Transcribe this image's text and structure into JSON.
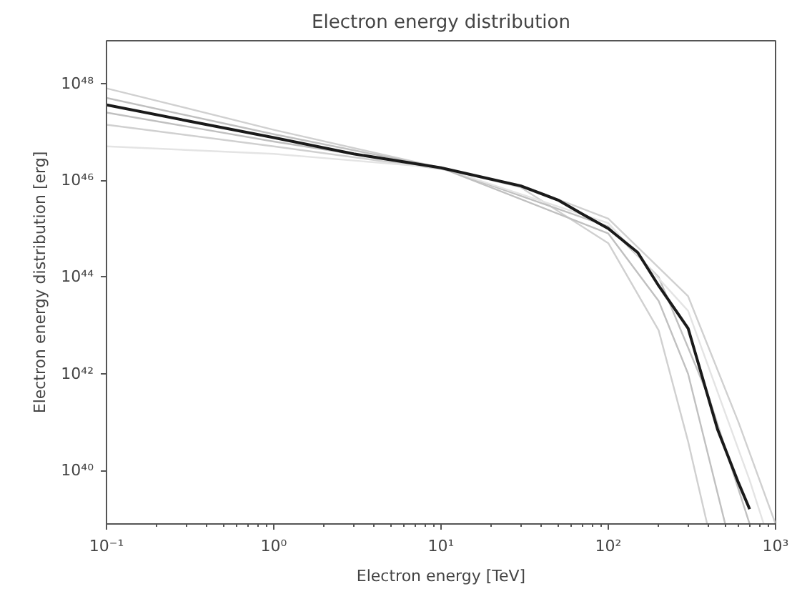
{
  "chart_data": {
    "type": "line",
    "title": "Electron energy distribution",
    "xlabel": "Electron energy [TeV]",
    "ylabel": "Electron energy distribution [erg]",
    "log": "xy",
    "grid": false,
    "marker": "none",
    "line_style": "solid",
    "xlim": [
      0.1,
      1000
    ],
    "ylim": [
      7.9e+38,
      7.6e+48
    ],
    "xticks": [
      {
        "value": 0.1,
        "label": "10⁻¹"
      },
      {
        "value": 1,
        "label": "10⁰"
      },
      {
        "value": 10,
        "label": "10¹"
      },
      {
        "value": 100,
        "label": "10²"
      },
      {
        "value": 1000,
        "label": "10³"
      }
    ],
    "yticks": [
      {
        "value": 1e+40,
        "label": "10⁴⁰"
      },
      {
        "value": 1e+42,
        "label": "10⁴²"
      },
      {
        "value": 1e+44,
        "label": "10⁴⁴"
      },
      {
        "value": 1e+46,
        "label": "10⁴⁶"
      },
      {
        "value": 1e+48,
        "label": "10⁴⁸"
      }
    ],
    "series": [
      {
        "color": "#d0d0d0",
        "x": [
          0.1,
          1,
          10,
          30,
          100,
          200,
          300,
          390
        ],
        "values": [
          7.9e+47,
          1.1e+47,
          1.8e+46,
          7.1e+45,
          5e+44,
          7.9e+42,
          4e+40,
          7.9e+38
        ]
      },
      {
        "color": "#d0d0d0",
        "x": [
          0.1,
          1,
          10,
          30,
          100,
          300,
          600,
          1000
        ],
        "values": [
          1.4e+47,
          5e+46,
          1.7e+46,
          7.9e+45,
          1.6e+45,
          4e+43,
          1e+41,
          7.9e+38
        ]
      },
      {
        "color": "#c0c0c0",
        "x": [
          0.1,
          1,
          10,
          100,
          200,
          400,
          700
        ],
        "values": [
          5e+47,
          8.9e+46,
          1.8e+46,
          1.1e+45,
          1e+44,
          3.2e+41,
          7.9e+38
        ]
      },
      {
        "color": "#e4e4e4",
        "x": [
          0.1,
          1,
          10,
          100,
          300,
          700,
          850
        ],
        "values": [
          5e+46,
          3.5e+46,
          1.8e+46,
          1.3e+45,
          2e+43,
          6.3e+39,
          7.9e+38
        ]
      },
      {
        "color": "#c0c0c0",
        "x": [
          0.1,
          1,
          10,
          100,
          200,
          300,
          500
        ],
        "values": [
          2.5e+47,
          6.3e+46,
          1.8e+46,
          7.9e+44,
          3.2e+43,
          1e+42,
          7.9e+38
        ]
      },
      {
        "color": "#1a1a1a",
        "x": [
          0.1,
          0.3,
          1,
          3,
          10,
          30,
          50,
          70,
          100,
          150,
          200,
          300,
          450,
          600,
          700
        ],
        "values": [
          3.6e+47,
          1.7e+47,
          7.6e+46,
          3.5e+46,
          1.8e+46,
          7.6e+45,
          3.9e+45,
          2e+45,
          1e+45,
          3.2e+44,
          6.6e+43,
          8.7e+42,
          7.1e+40,
          5.6e+39,
          1.6e+39
        ]
      }
    ]
  }
}
